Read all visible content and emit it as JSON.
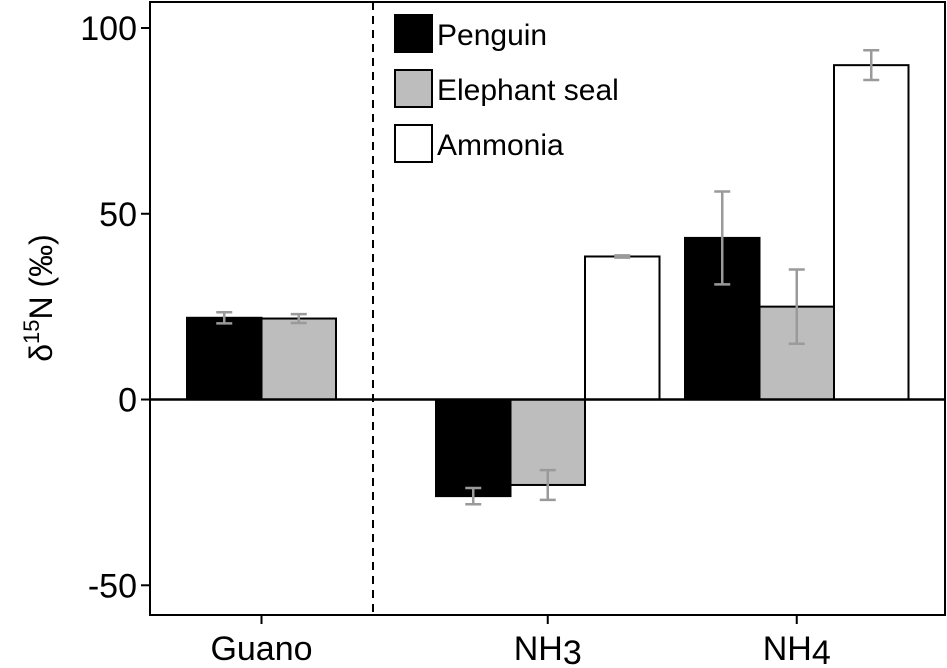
{
  "chart_data": {
    "type": "bar",
    "title": "",
    "xlabel": "",
    "ylabel": {
      "delta": "δ",
      "superscript": "15",
      "element": "N",
      "unit": " (‰)"
    },
    "ylim": [
      -58,
      107
    ],
    "yticks": [
      -50,
      0,
      50,
      100
    ],
    "ytick_labels": [
      "-50",
      "0",
      "50",
      "100"
    ],
    "categories": [
      {
        "base": "Guano",
        "sub": ""
      },
      {
        "base": "NH",
        "sub": "3"
      },
      {
        "base": "NH",
        "sub": "4"
      }
    ],
    "series": [
      {
        "name": "Penguin",
        "color": "#000000",
        "values": [
          22,
          -26,
          43.5
        ],
        "errors": [
          1.5,
          2.2,
          12.5
        ]
      },
      {
        "name": "Elephant seal",
        "color": "#bdbdbd",
        "values": [
          21.8,
          -23,
          25
        ],
        "errors": [
          1.2,
          4,
          10
        ]
      },
      {
        "name": "Ammonia",
        "color": "#ffffff",
        "values": [
          null,
          38.5,
          90
        ],
        "errors": [
          null,
          0.3,
          4
        ]
      }
    ],
    "error_bar_color": "#9a9a9a",
    "legend_position": "top-center",
    "separator": "dashed line between Guano and NH3",
    "zero_line": true
  }
}
